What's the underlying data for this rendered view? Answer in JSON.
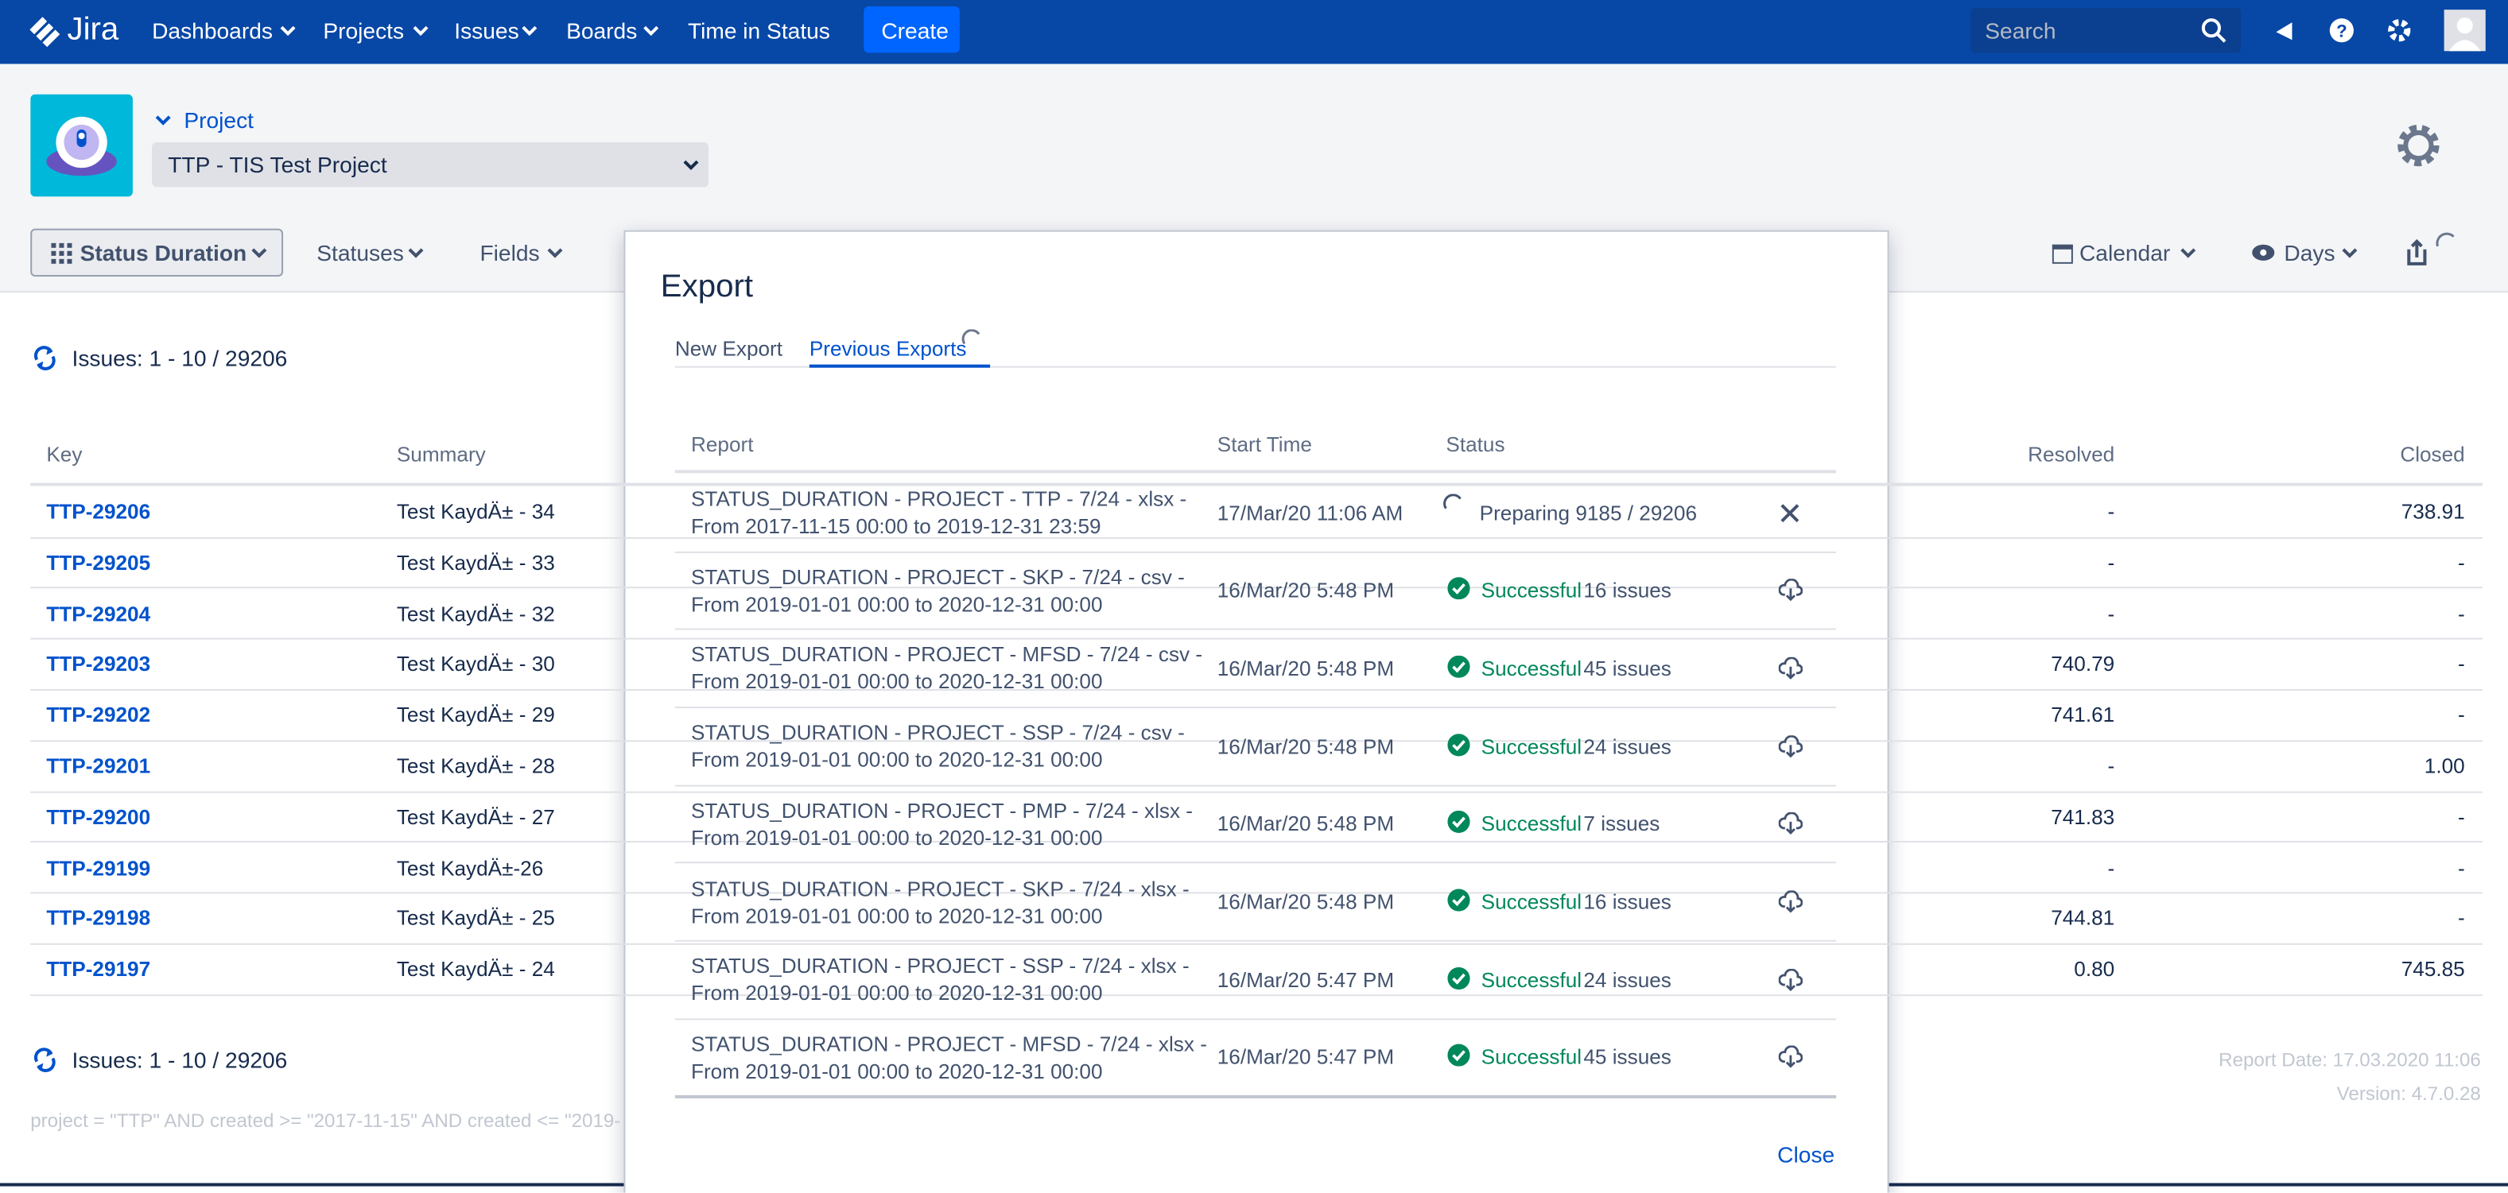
{
  "nav": {
    "logo": "Jira",
    "items": [
      "Dashboards",
      "Projects",
      "Issues",
      "Boards",
      "Time in Status"
    ],
    "create": "Create",
    "search": "Search"
  },
  "project": {
    "label": "Project",
    "selected": "TTP - TIS Test Project"
  },
  "toolbar": {
    "view": "Status Duration",
    "statuses": "Statuses",
    "fields": "Fields",
    "calendar": "Calendar",
    "days": "Days"
  },
  "issues_count": "Issues: 1 - 10 / 29206",
  "table": {
    "columns": [
      "Key",
      "Summary",
      "Resolved",
      "Closed"
    ],
    "rows": [
      [
        "TTP-29206",
        "Test KaydÄ± - 34",
        "-",
        "738.91"
      ],
      [
        "TTP-29205",
        "Test KaydÄ± - 33",
        "-",
        "-"
      ],
      [
        "TTP-29204",
        "Test KaydÄ± - 32",
        "-",
        "-"
      ],
      [
        "TTP-29203",
        "Test KaydÄ± - 30",
        "740.79",
        "-"
      ],
      [
        "TTP-29202",
        "Test KaydÄ± - 29",
        "741.61",
        "-"
      ],
      [
        "TTP-29201",
        "Test KaydÄ± - 28",
        "-",
        "1.00"
      ],
      [
        "TTP-29200",
        "Test KaydÄ± - 27",
        "741.83",
        "-"
      ],
      [
        "TTP-29199",
        "Test KaydÄ±-26",
        "-",
        "-"
      ],
      [
        "TTP-29198",
        "Test KaydÄ± - 25",
        "744.81",
        "-"
      ],
      [
        "TTP-29197",
        "Test KaydÄ± - 24",
        "0.80",
        "745.85"
      ]
    ]
  },
  "footer": {
    "query": "project = \"TTP\" AND created >= \"2017-11-15\" AND created <= \"2019-",
    "report_date": "Report Date: 17.03.2020 11:06",
    "version": "Version: 4.7.0.28"
  },
  "modal": {
    "title": "Export",
    "tabs": [
      "New Export",
      "Previous Exports"
    ],
    "columns": [
      "Report",
      "Start Time",
      "Status"
    ],
    "rows": [
      [
        "STATUS_DURATION - PROJECT - TTP - 7/24 - xlsx -",
        "From 2017-11-15 00:00 to 2019-12-31 23:59",
        "17/Mar/20 11:06 AM",
        "Preparing",
        "9185 / 29206"
      ],
      [
        "STATUS_DURATION - PROJECT - SKP - 7/24 - csv -",
        "From 2019-01-01 00:00 to 2020-12-31 00:00",
        "16/Mar/20 5:48 PM",
        "Successful",
        "16 issues"
      ],
      [
        "STATUS_DURATION - PROJECT - MFSD - 7/24 - csv -",
        "From 2019-01-01 00:00 to 2020-12-31 00:00",
        "16/Mar/20 5:48 PM",
        "Successful",
        "45 issues"
      ],
      [
        "STATUS_DURATION - PROJECT - SSP - 7/24 - csv -",
        "From 2019-01-01 00:00 to 2020-12-31 00:00",
        "16/Mar/20 5:48 PM",
        "Successful",
        "24 issues"
      ],
      [
        "STATUS_DURATION - PROJECT - PMP - 7/24 - xlsx -",
        "From 2019-01-01 00:00 to 2020-12-31 00:00",
        "16/Mar/20 5:48 PM",
        "Successful",
        "7 issues"
      ],
      [
        "STATUS_DURATION - PROJECT - SKP - 7/24 - xlsx -",
        "From 2019-01-01 00:00 to 2020-12-31 00:00",
        "16/Mar/20 5:48 PM",
        "Successful",
        "16 issues"
      ],
      [
        "STATUS_DURATION - PROJECT - SSP - 7/24 - xlsx -",
        "From 2019-01-01 00:00 to 2020-12-31 00:00",
        "16/Mar/20 5:47 PM",
        "Successful",
        "24 issues"
      ],
      [
        "STATUS_DURATION - PROJECT - MFSD - 7/24 - xlsx -",
        "From 2019-01-01 00:00 to 2020-12-31 00:00",
        "16/Mar/20 5:47 PM",
        "Successful",
        "45 issues"
      ]
    ],
    "close": "Close"
  }
}
